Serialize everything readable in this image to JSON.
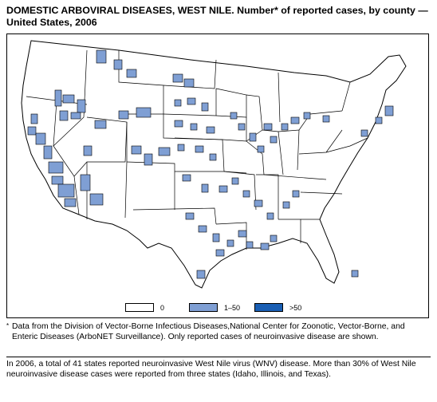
{
  "title": "DOMESTIC ARBOVIRAL DISEASES, WEST NILE. Number* of reported cases, by county — United States, 2006",
  "legend": [
    {
      "label": "0",
      "color": "#ffffff"
    },
    {
      "label": "1–50",
      "color": "#7f9fd4"
    },
    {
      "label": ">50",
      "color": "#1a5fb4"
    }
  ],
  "colors": {
    "low": "#7f9fd4",
    "high": "#1a5fb4",
    "border": "#000000",
    "background": "#ffffff"
  },
  "footnote": {
    "mark": "*",
    "text": "Data from the Division of Vector-Borne Infectious Diseases,National Center for Zoonotic, Vector-Borne, and Enteric Diseases (ArboNET Surveillance). Only reported cases of neuroinvasive disease are shown."
  },
  "summary": "In 2006, a total of 41 states reported neuroinvasive West Nile virus (WNV) disease. More than 30% of West Nile neuroinvasive disease cases were reported from three states (Idaho, Illinois, and Texas)."
}
